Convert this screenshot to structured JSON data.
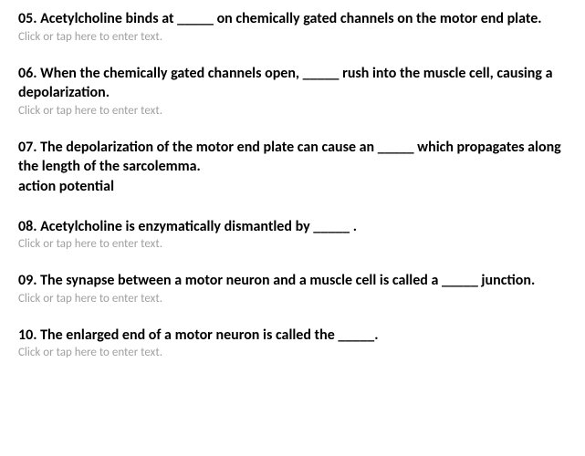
{
  "placeholder_text": "Click or tap here to enter text.",
  "questions": [
    {
      "number": "05",
      "text": "05. Acetylcholine binds at _____ on chemically gated channels on the motor end plate.",
      "answer": null,
      "has_input": true
    },
    {
      "number": "06",
      "text": "06. When the chemically gated channels open, _____ rush into the muscle cell, causing a depolarization.",
      "answer": null,
      "has_input": true
    },
    {
      "number": "07",
      "text": "07. The depolarization of the motor end plate can cause an _____ which propagates along the length of the sarcolemma.",
      "answer": "action potential",
      "has_input": false
    },
    {
      "number": "08",
      "text": "08. Acetylcholine is enzymatically dismantled by _____ .",
      "answer": null,
      "has_input": true
    },
    {
      "number": "09",
      "text": "09. The synapse between a motor neuron and a muscle cell is called a _____ junction.",
      "answer": null,
      "has_input": true
    },
    {
      "number": "10",
      "text": "10. The enlarged end of a motor neuron is called the _____.",
      "answer": null,
      "has_input": true
    }
  ],
  "styling": {
    "question_font_size": 16,
    "question_font_weight": "bold",
    "question_color": "#000000",
    "placeholder_font_size": 13,
    "placeholder_color": "#a0a0a0",
    "background_color": "#ffffff",
    "block_margin_bottom": 22,
    "line_height": 1.35
  }
}
